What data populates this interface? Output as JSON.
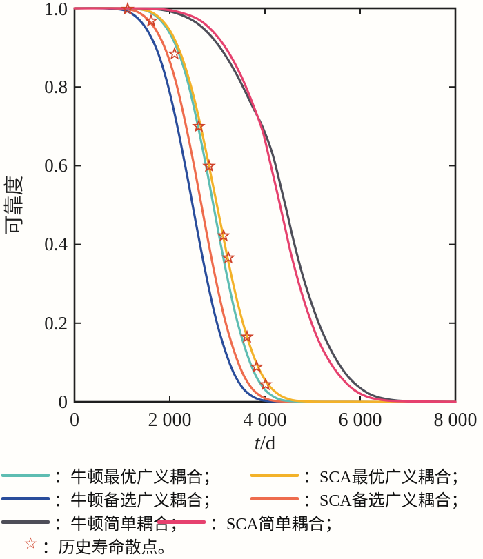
{
  "page": {
    "background": "#fffefb"
  },
  "chart_data": {
    "type": "line",
    "title": "",
    "xlabel_var": "t",
    "xlabel_unit": "/d",
    "ylabel": "可靠度",
    "xlim": [
      0,
      8000
    ],
    "ylim": [
      0,
      1.0
    ],
    "grid": false,
    "axis_color": "#1f1f1f",
    "x_ticks": [
      0,
      2000,
      4000,
      6000,
      8000
    ],
    "x_tick_labels": [
      "0",
      "2 000",
      "4 000",
      "6 000",
      "8 000"
    ],
    "y_ticks": [
      0,
      0.2,
      0.4,
      0.6,
      0.8,
      1.0
    ],
    "y_tick_labels": [
      "0",
      "0.2",
      "0.4",
      "0.6",
      "0.8",
      "1.0"
    ],
    "series": [
      {
        "key": "newton-alternative",
        "name": "牛顿备选广义耦合",
        "color": "#2a4d9b",
        "points": [
          [
            0,
            1
          ],
          [
            600,
            1
          ],
          [
            950,
            0.997
          ],
          [
            1150,
            0.99
          ],
          [
            1350,
            0.972
          ],
          [
            1550,
            0.94
          ],
          [
            1750,
            0.888
          ],
          [
            1950,
            0.81
          ],
          [
            2150,
            0.705
          ],
          [
            2350,
            0.585
          ],
          [
            2550,
            0.455
          ],
          [
            2750,
            0.33
          ],
          [
            2950,
            0.22
          ],
          [
            3150,
            0.135
          ],
          [
            3350,
            0.072
          ],
          [
            3550,
            0.033
          ],
          [
            3750,
            0.013
          ],
          [
            3950,
            0.004
          ],
          [
            4250,
            0.001
          ],
          [
            5000,
            0
          ],
          [
            8000,
            0
          ]
        ]
      },
      {
        "key": "sca-alternative",
        "name": "SCA备选广义耦合",
        "color": "#ee6c4d",
        "points": [
          [
            0,
            1
          ],
          [
            785,
            1
          ],
          [
            1135,
            0.997
          ],
          [
            1335,
            0.99
          ],
          [
            1535,
            0.972
          ],
          [
            1735,
            0.94
          ],
          [
            1935,
            0.888
          ],
          [
            2135,
            0.81
          ],
          [
            2335,
            0.705
          ],
          [
            2535,
            0.585
          ],
          [
            2735,
            0.455
          ],
          [
            2935,
            0.33
          ],
          [
            3135,
            0.22
          ],
          [
            3335,
            0.135
          ],
          [
            3535,
            0.072
          ],
          [
            3735,
            0.033
          ],
          [
            3935,
            0.013
          ],
          [
            4135,
            0.004
          ],
          [
            4435,
            0.001
          ],
          [
            5200,
            0
          ],
          [
            8000,
            0
          ]
        ]
      },
      {
        "key": "newton-optimal",
        "name": "牛顿最优广义耦合",
        "color": "#5ebdb2",
        "points": [
          [
            0,
            1
          ],
          [
            1035,
            1
          ],
          [
            1385,
            0.997
          ],
          [
            1585,
            0.99
          ],
          [
            1785,
            0.972
          ],
          [
            1985,
            0.94
          ],
          [
            2185,
            0.888
          ],
          [
            2385,
            0.81
          ],
          [
            2585,
            0.705
          ],
          [
            2785,
            0.585
          ],
          [
            2985,
            0.455
          ],
          [
            3185,
            0.33
          ],
          [
            3385,
            0.22
          ],
          [
            3585,
            0.135
          ],
          [
            3785,
            0.072
          ],
          [
            3985,
            0.033
          ],
          [
            4185,
            0.013
          ],
          [
            4385,
            0.004
          ],
          [
            4685,
            0.001
          ],
          [
            5400,
            0
          ],
          [
            8000,
            0
          ]
        ]
      },
      {
        "key": "sca-optimal",
        "name": "SCA最优广义耦合",
        "color": "#f3b229",
        "points": [
          [
            0,
            1
          ],
          [
            1100,
            1
          ],
          [
            1450,
            0.996
          ],
          [
            1650,
            0.988
          ],
          [
            1850,
            0.968
          ],
          [
            2050,
            0.934
          ],
          [
            2250,
            0.878
          ],
          [
            2450,
            0.8
          ],
          [
            2650,
            0.7
          ],
          [
            2850,
            0.585
          ],
          [
            3050,
            0.465
          ],
          [
            3250,
            0.345
          ],
          [
            3450,
            0.24
          ],
          [
            3650,
            0.155
          ],
          [
            3850,
            0.09
          ],
          [
            4050,
            0.047
          ],
          [
            4250,
            0.022
          ],
          [
            4450,
            0.009
          ],
          [
            4750,
            0.002
          ],
          [
            5500,
            0
          ],
          [
            8000,
            0
          ]
        ]
      },
      {
        "key": "newton-simple",
        "name": "牛顿简单耦合",
        "color": "#4e4e58",
        "points": [
          [
            0,
            1
          ],
          [
            1100,
            1
          ],
          [
            1700,
            0.998
          ],
          [
            2100,
            0.989
          ],
          [
            2500,
            0.968
          ],
          [
            2800,
            0.938
          ],
          [
            3100,
            0.893
          ],
          [
            3400,
            0.833
          ],
          [
            3700,
            0.76
          ],
          [
            3950,
            0.698
          ],
          [
            4150,
            0.633
          ],
          [
            4300,
            0.563
          ],
          [
            4450,
            0.488
          ],
          [
            4600,
            0.41
          ],
          [
            4800,
            0.318
          ],
          [
            5000,
            0.243
          ],
          [
            5200,
            0.179
          ],
          [
            5450,
            0.117
          ],
          [
            5700,
            0.071
          ],
          [
            5950,
            0.04
          ],
          [
            6250,
            0.017
          ],
          [
            6650,
            0.005
          ],
          [
            7150,
            0.001
          ],
          [
            8000,
            0
          ]
        ]
      },
      {
        "key": "sca-simple",
        "name": "SCA简单耦合",
        "color": "#e6416e",
        "points": [
          [
            0,
            1
          ],
          [
            1200,
            1
          ],
          [
            1800,
            0.998
          ],
          [
            2200,
            0.99
          ],
          [
            2600,
            0.972
          ],
          [
            2900,
            0.942
          ],
          [
            3200,
            0.895
          ],
          [
            3500,
            0.828
          ],
          [
            3750,
            0.755
          ],
          [
            3950,
            0.688
          ],
          [
            4100,
            0.613
          ],
          [
            4250,
            0.535
          ],
          [
            4400,
            0.455
          ],
          [
            4550,
            0.375
          ],
          [
            4750,
            0.285
          ],
          [
            4950,
            0.21
          ],
          [
            5150,
            0.149
          ],
          [
            5400,
            0.094
          ],
          [
            5650,
            0.055
          ],
          [
            5900,
            0.028
          ],
          [
            6200,
            0.011
          ],
          [
            6600,
            0.003
          ],
          [
            7100,
            0.001
          ],
          [
            8000,
            0
          ]
        ]
      }
    ],
    "scatter": {
      "key": "history-scatter",
      "name": "历史寿命散点",
      "marker": "open-star",
      "stroke": "#cf4229",
      "points": [
        [
          1116,
          0.998
        ],
        [
          1609,
          0.968
        ],
        [
          2101,
          0.884
        ],
        [
          2609,
          0.7
        ],
        [
          2826,
          0.599
        ],
        [
          3130,
          0.422
        ],
        [
          3232,
          0.366
        ],
        [
          3623,
          0.165
        ],
        [
          3826,
          0.089
        ],
        [
          4014,
          0.044
        ]
      ]
    }
  },
  "legend": {
    "star_glyph": "☆",
    "rows": [
      {
        "items": [
          {
            "key": "newton-optimal",
            "label": "：牛顿最优广义耦合；"
          },
          {
            "key": "sca-optimal",
            "label": "：SCA最优广义耦合；"
          }
        ]
      },
      {
        "items": [
          {
            "key": "newton-alternative",
            "label": "：牛顿备选广义耦合；"
          },
          {
            "key": "sca-alternative",
            "label": "：SCA备选广义耦合；"
          }
        ]
      },
      {
        "items": [
          {
            "key": "newton-simple",
            "label": "：牛顿简单耦合；"
          },
          {
            "key": "sca-simple",
            "label": "：SCA简单耦合；"
          }
        ]
      },
      {
        "items": [
          {
            "key": "history-scatter",
            "label": "：历史寿命散点。"
          }
        ]
      }
    ]
  }
}
